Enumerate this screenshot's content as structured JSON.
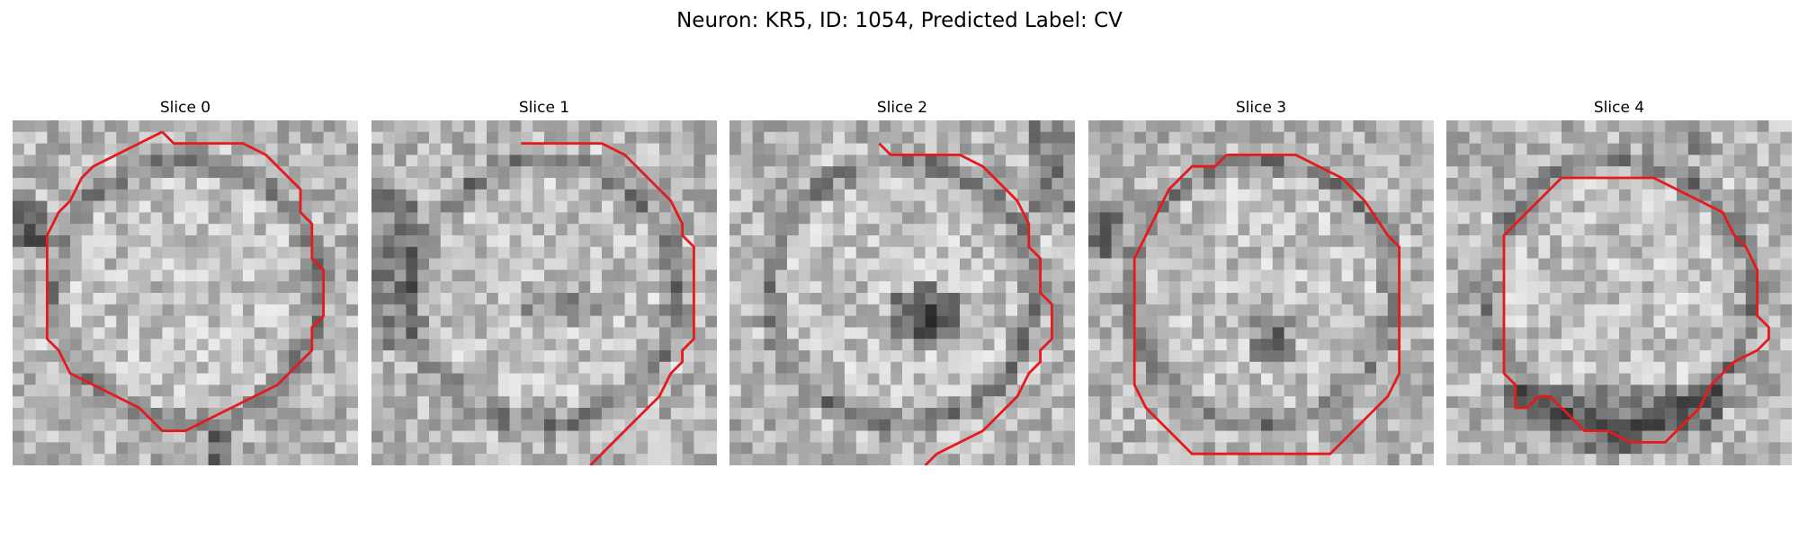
{
  "figure": {
    "title": "Neuron: KR5, ID: 1054, Predicted Label: CV"
  },
  "panels": [
    {
      "title": "Slice 0",
      "variant": "hollow-ring",
      "seed": 11
    },
    {
      "title": "Slice 1",
      "variant": "dark-lower-band",
      "seed": 23
    },
    {
      "title": "Slice 2",
      "variant": "dark-center",
      "seed": 37
    },
    {
      "title": "Slice 3",
      "variant": "small-dark-center",
      "seed": 53
    },
    {
      "title": "Slice 4",
      "variant": "dark-bottom-ring",
      "seed": 71
    }
  ],
  "colors": {
    "contour": "#e41a1c",
    "background": "#ffffff"
  },
  "image_style": "grayscale pixelated microscopy slice with red outline contour"
}
